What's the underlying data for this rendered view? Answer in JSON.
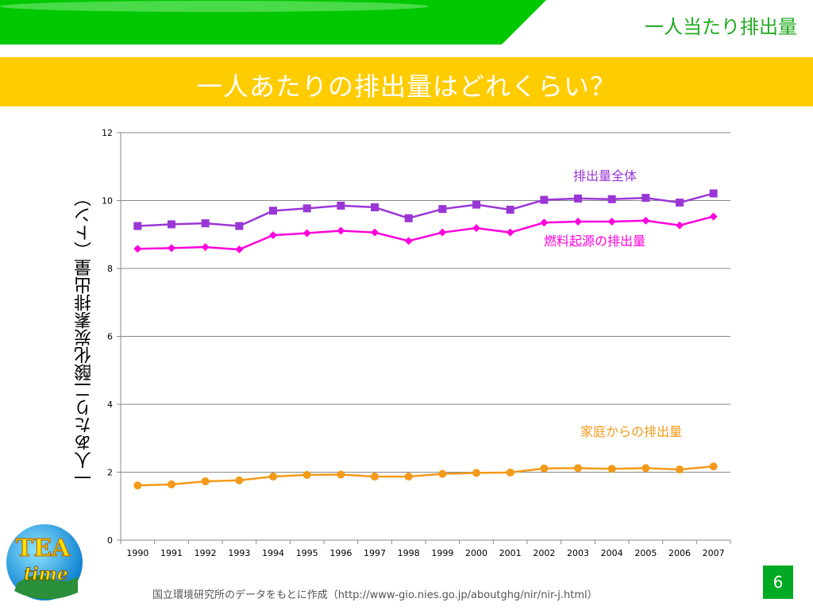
{
  "header": {
    "section_title": "一人当たり排出量",
    "slide_title": "一人あたりの排出量はどれくらい？"
  },
  "colors": {
    "green_band": "#00c800",
    "title_bar": "#ffcc00",
    "total": "#9a36d6",
    "fuel": "#ff00dd",
    "household": "#f39a1a",
    "page_badge": "#00aa22"
  },
  "chart_data": {
    "type": "line",
    "categories": [
      "1990",
      "1991",
      "1992",
      "1993",
      "1994",
      "1995",
      "1996",
      "1997",
      "1998",
      "1999",
      "2000",
      "2001",
      "2002",
      "2003",
      "2004",
      "2005",
      "2006",
      "2007"
    ],
    "ylabel": "一人あたり二酸化炭素排出量（トン）",
    "ylim": [
      0,
      12
    ],
    "yticks": [
      0,
      2,
      4,
      6,
      8,
      10,
      12
    ],
    "grid": true,
    "series": [
      {
        "name": "排出量全体",
        "marker": "square",
        "color": "#9a36d6",
        "values": [
          9.25,
          9.3,
          9.33,
          9.25,
          9.7,
          9.77,
          9.85,
          9.8,
          9.48,
          9.75,
          9.88,
          9.73,
          10.02,
          10.06,
          10.04,
          10.08,
          9.94,
          10.21
        ]
      },
      {
        "name": "燃料起源の排出量",
        "marker": "diamond",
        "color": "#ff00dd",
        "values": [
          8.58,
          8.6,
          8.63,
          8.56,
          8.98,
          9.04,
          9.11,
          9.06,
          8.81,
          9.06,
          9.19,
          9.06,
          9.35,
          9.38,
          9.38,
          9.41,
          9.27,
          9.53
        ]
      },
      {
        "name": "家庭からの排出量",
        "marker": "circle",
        "color": "#f39a1a",
        "values": [
          1.61,
          1.64,
          1.73,
          1.76,
          1.87,
          1.92,
          1.93,
          1.87,
          1.87,
          1.95,
          1.98,
          1.99,
          2.11,
          2.12,
          2.1,
          2.12,
          2.08,
          2.17
        ]
      }
    ]
  },
  "footer": {
    "source": "国立環境研究所のデータをもとに作成（http://www-gio.nies.go.jp/aboutghg/nir/nir-j.html）",
    "page_number": "6",
    "logo_text_top": "TEA",
    "logo_text_bottom": "time"
  }
}
